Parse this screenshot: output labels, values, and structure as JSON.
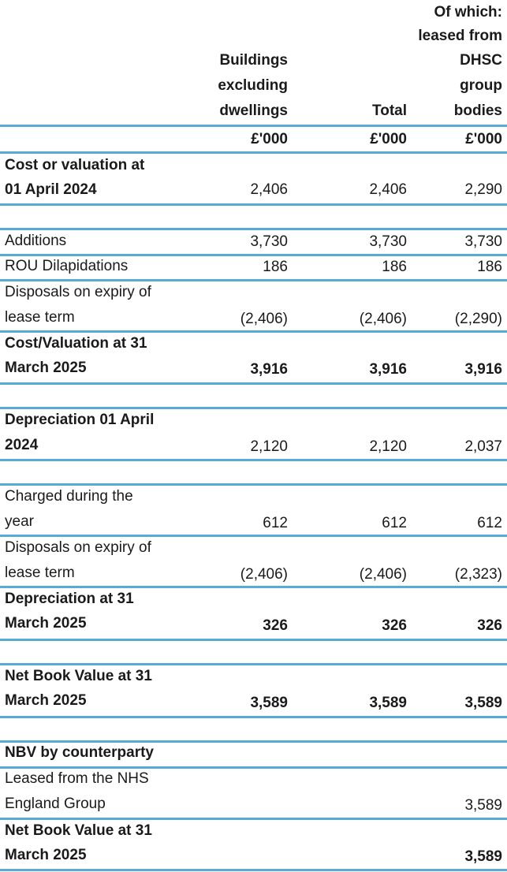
{
  "header": {
    "col1": [
      "Buildings",
      "excluding",
      "dwellings"
    ],
    "col2": [
      "Total"
    ],
    "col3": [
      "Of which:",
      "leased from",
      "DHSC",
      "group",
      "bodies"
    ],
    "units": [
      "£'000",
      "£'000",
      "£'000"
    ]
  },
  "rows": {
    "cost_open": {
      "label": [
        "Cost or valuation at",
        "01 April 2024"
      ],
      "v1": "2,406",
      "v2": "2,406",
      "v3": "2,290"
    },
    "additions": {
      "label": "Additions",
      "v1": "3,730",
      "v2": "3,730",
      "v3": "3,730"
    },
    "rou": {
      "label": "ROU Dilapidations",
      "v1": "186",
      "v2": "186",
      "v3": "186"
    },
    "disp1": {
      "label": [
        "Disposals on expiry of",
        "lease term"
      ],
      "v1": "(2,406)",
      "v2": "(2,406)",
      "v3": "(2,290)"
    },
    "cost_close": {
      "label": [
        "Cost/Valuation at 31",
        "March 2025"
      ],
      "v1": "3,916",
      "v2": "3,916",
      "v3": "3,916"
    },
    "dep_open": {
      "label": [
        "Depreciation 01 April",
        "2024"
      ],
      "v1": "2,120",
      "v2": "2,120",
      "v3": "2,037"
    },
    "charged": {
      "label": [
        "Charged during the",
        "year"
      ],
      "v1": "612",
      "v2": "612",
      "v3": "612"
    },
    "disp2": {
      "label": [
        "Disposals on expiry of",
        "lease term"
      ],
      "v1": "(2,406)",
      "v2": "(2,406)",
      "v3": "(2,323)"
    },
    "dep_close": {
      "label": [
        "Depreciation at 31",
        "March 2025"
      ],
      "v1": "326",
      "v2": "326",
      "v3": "326"
    },
    "nbv": {
      "label": [
        "Net Book Value at 31",
        "March 2025"
      ],
      "v1": "3,589",
      "v2": "3,589",
      "v3": "3,589"
    },
    "nbv_cp": {
      "label": "NBV by counterparty"
    },
    "leased_nhs": {
      "label": [
        "Leased from the NHS",
        "England Group"
      ],
      "v3": "3,589"
    },
    "nbv2": {
      "label": [
        "Net Book Value at 31",
        "March 2025"
      ],
      "v3": "3,589"
    }
  },
  "colors": {
    "rule": "#5aaad8",
    "text": "#1a1a1a"
  }
}
